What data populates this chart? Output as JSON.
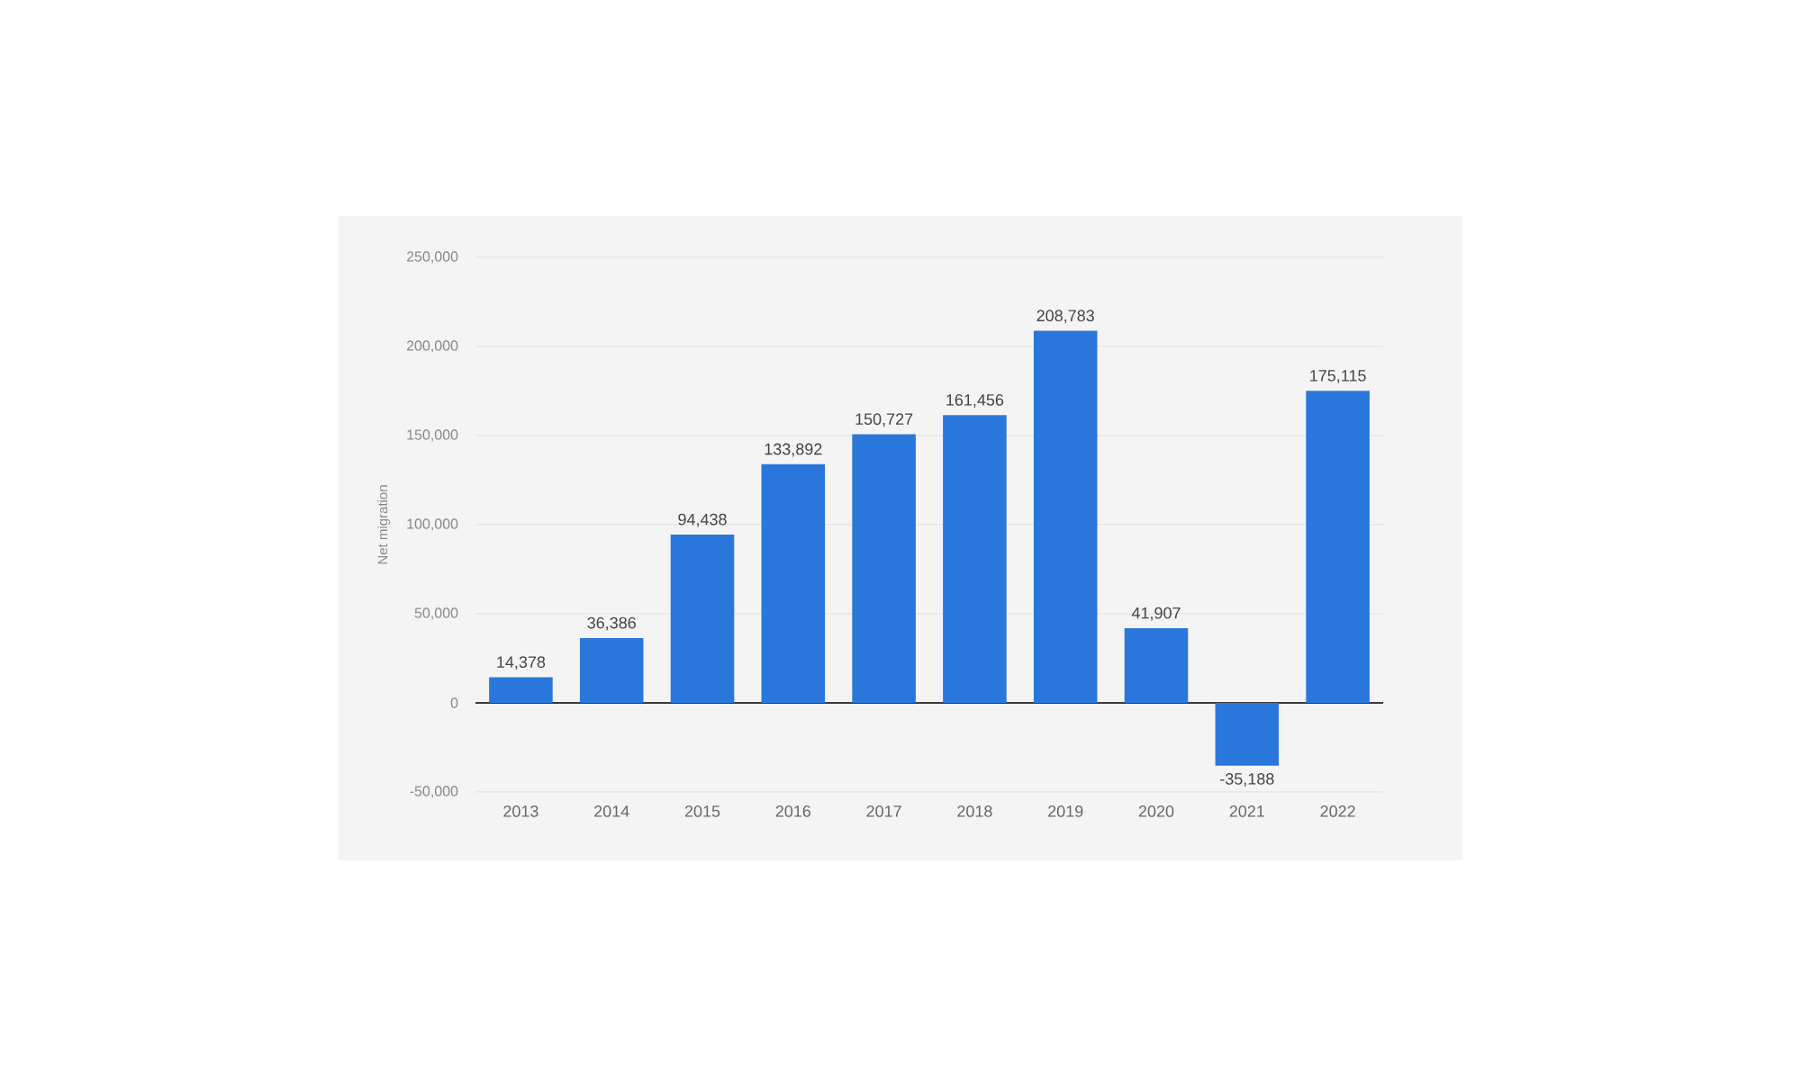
{
  "chart_data": {
    "type": "bar",
    "ylabel": "Net migration",
    "categories": [
      "2013",
      "2014",
      "2015",
      "2016",
      "2017",
      "2018",
      "2019",
      "2020",
      "2021",
      "2022"
    ],
    "values": [
      14378,
      36386,
      94438,
      133892,
      150727,
      161456,
      208783,
      41907,
      -35188,
      175115
    ],
    "value_labels": [
      "14,378",
      "36,386",
      "94,438",
      "133,892",
      "150,727",
      "161,456",
      "208,783",
      "41,907",
      "-35,188",
      "175,115"
    ],
    "color": "#2a77dc",
    "ylim": [
      -50000,
      250000
    ],
    "yticks": [
      {
        "value": -50000,
        "label": "-50,000"
      },
      0,
      {
        "value": 50000,
        "label": "50,000"
      },
      {
        "value": 100000,
        "label": "100,000"
      },
      {
        "value": 150000,
        "label": "150,000"
      },
      {
        "value": 200000,
        "label": "200,000"
      },
      {
        "value": 250000,
        "label": "250,000"
      }
    ],
    "grid": "y"
  }
}
